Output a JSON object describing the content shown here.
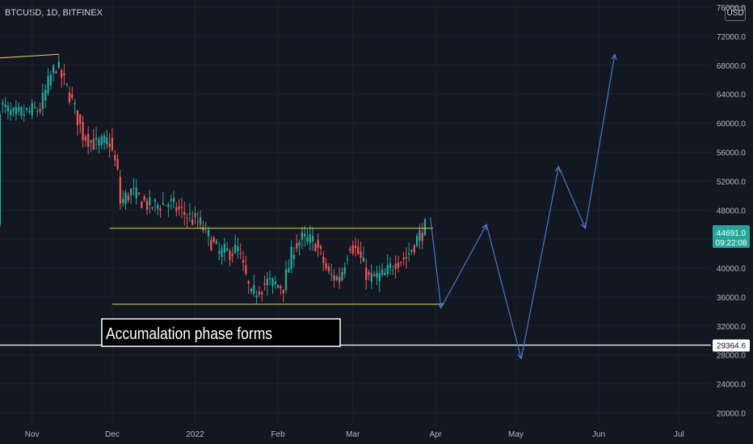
{
  "header": {
    "symbol_text": "BTCUSD, 1D, BITFINEX"
  },
  "currency": {
    "label": "USD"
  },
  "colors": {
    "background": "#131722",
    "grid": "#1e222d",
    "up": "#26a69a",
    "down": "#ef5350",
    "support_resistance": "#e8d44d",
    "projection": "#4a78c2",
    "text": "#b2b5be"
  },
  "chart_data": {
    "type": "line",
    "title": "",
    "xlabel": "",
    "ylabel": "",
    "x_ticks": [
      "Nov",
      "Dec",
      "2022",
      "Feb",
      "Mar",
      "Apr",
      "May",
      "Jun",
      "Jul"
    ],
    "y_ticks": [
      "76000.0",
      "72000.0",
      "68000.0",
      "64000.0",
      "60000.0",
      "56000.0",
      "52000.0",
      "48000.0",
      "44000.0",
      "40000.0",
      "36000.0",
      "32000.0",
      "28000.0",
      "24000.0",
      "20000.0"
    ],
    "ylim": [
      18500,
      77000
    ],
    "xlim": [
      "2021-10-20",
      "2022-07-13"
    ],
    "grid": true,
    "price_series": {
      "name": "BTCUSD",
      "x": [
        "2021-10-20",
        "2021-10-25",
        "2021-10-30",
        "2021-11-04",
        "2021-11-08",
        "2021-11-10",
        "2021-11-15",
        "2021-11-20",
        "2021-11-25",
        "2021-11-30",
        "2021-12-03",
        "2021-12-04",
        "2021-12-08",
        "2021-12-15",
        "2021-12-22",
        "2021-12-28",
        "2022-01-03",
        "2022-01-10",
        "2022-01-17",
        "2022-01-22",
        "2022-01-24",
        "2022-01-28",
        "2022-02-03",
        "2022-02-07",
        "2022-02-10",
        "2022-02-15",
        "2022-02-20",
        "2022-02-24",
        "2022-02-28",
        "2022-03-03",
        "2022-03-07",
        "2022-03-13",
        "2022-03-17",
        "2022-03-21",
        "2022-03-25",
        "2022-03-28"
      ],
      "values": [
        62500,
        61000,
        61500,
        62000,
        66500,
        68000,
        64000,
        58500,
        57000,
        57500,
        53000,
        49000,
        50500,
        48500,
        49000,
        47500,
        46000,
        42000,
        42500,
        36000,
        37000,
        38000,
        37500,
        43000,
        44000,
        43500,
        39000,
        38500,
        43500,
        42000,
        38500,
        39000,
        41000,
        41500,
        44000,
        45500
      ]
    },
    "lines": [
      {
        "name": "",
        "x": [
          "2021-10-20",
          "2021-11-11"
        ],
        "values": [
          69000,
          69500
        ]
      },
      {
        "name": "",
        "x": [
          "2021-11-30",
          "2022-03-31"
        ],
        "values": [
          45500,
          45500
        ]
      },
      {
        "name": "",
        "x": [
          "2021-12-01",
          "2022-04-04"
        ],
        "values": [
          35000,
          35000
        ]
      },
      {
        "name": "",
        "x": [
          "2021-10-20",
          "2022-07-13"
        ],
        "values": [
          29364.6,
          29364.6
        ]
      }
    ],
    "projection": {
      "name": "",
      "x": [
        "2022-03-30",
        "2022-04-03",
        "2022-04-20",
        "2022-05-03",
        "2022-05-17",
        "2022-05-27",
        "2022-06-07"
      ],
      "values": [
        47000,
        34500,
        46000,
        27500,
        54000,
        45500,
        69500
      ]
    },
    "current_price": {
      "value": 44691,
      "label": "44691.0",
      "countdown": "09:22:08"
    },
    "level_label": {
      "value": 29364.6,
      "label": "29364.6"
    },
    "annotation": {
      "text": "Accumalation phase forms"
    }
  }
}
